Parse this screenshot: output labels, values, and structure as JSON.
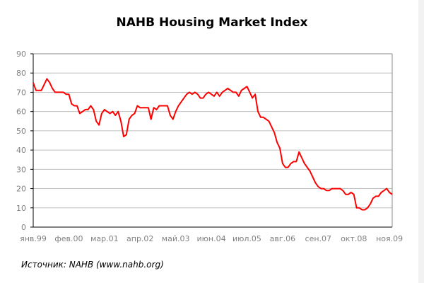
{
  "chart_data": {
    "type": "line",
    "title": "NAHB Housing Market Index",
    "xlabel": "",
    "ylabel": "",
    "ylim": [
      0,
      90
    ],
    "yticks": [
      0,
      10,
      20,
      30,
      40,
      50,
      60,
      70,
      80,
      90
    ],
    "grid": true,
    "legend": "none",
    "x_start": "1999-01",
    "x_frequency": "monthly",
    "xtick_labels": [
      "янв.99",
      "фев.00",
      "мар.01",
      "апр.02",
      "май.03",
      "июн.04",
      "июл.05",
      "авг.06",
      "сен.07",
      "окт.08",
      "ноя.09"
    ],
    "series": [
      {
        "color": "#ff0000",
        "values": [
          75,
          71,
          71,
          71,
          74,
          77,
          75,
          72,
          70,
          70,
          70,
          70,
          69,
          69,
          64,
          63,
          63,
          59,
          60,
          61,
          61,
          63,
          61,
          55,
          53,
          59,
          61,
          60,
          59,
          60,
          58,
          60,
          55,
          47,
          48,
          56,
          58,
          59,
          63,
          62,
          62,
          62,
          62,
          56,
          62,
          61,
          63,
          63,
          63,
          63,
          58,
          56,
          60,
          63,
          65,
          67,
          69,
          70,
          69,
          70,
          69,
          67,
          67,
          69,
          70,
          69,
          68,
          70,
          68,
          70,
          71,
          72,
          71,
          70,
          70,
          68,
          71,
          72,
          73,
          70,
          67,
          69,
          60,
          57,
          57,
          56,
          55,
          52,
          49,
          44,
          41,
          33,
          31,
          31,
          33,
          34,
          34,
          39,
          36,
          33,
          31,
          29,
          26,
          23,
          21,
          20,
          20,
          19,
          19,
          20,
          20,
          20,
          20,
          19,
          17,
          17,
          18,
          17,
          10,
          10,
          9,
          9,
          10,
          12,
          15,
          16,
          16,
          18,
          19,
          20,
          18,
          17
        ]
      }
    ]
  },
  "source": "Источник: NAHB (www.nahb.org)"
}
